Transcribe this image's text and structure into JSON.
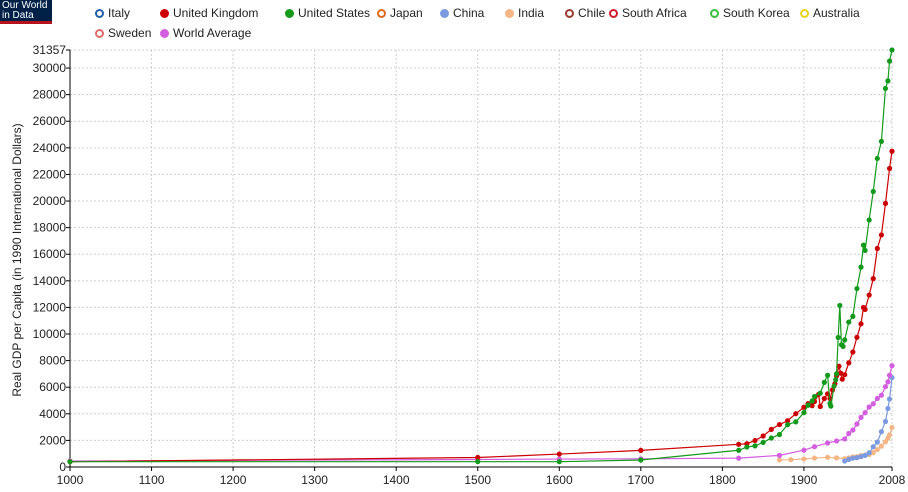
{
  "logo": {
    "line1": "Our World",
    "line2": "in Data"
  },
  "legend": [
    {
      "name": "Italy",
      "color": "#1f5fa8",
      "filled": false
    },
    {
      "name": "United Kingdom",
      "color": "#cc0000",
      "filled": true
    },
    {
      "name": "United States",
      "color": "#139a1b",
      "filled": true
    },
    {
      "name": "Japan",
      "color": "#e06a1a",
      "filled": false
    },
    {
      "name": "China",
      "color": "#7c9ae0",
      "filled": true
    },
    {
      "name": "India",
      "color": "#f5b585",
      "filled": true
    },
    {
      "name": "Chile",
      "color": "#9c3b2e",
      "filled": false
    },
    {
      "name": "South Africa",
      "color": "#d01a2a",
      "filled": false
    },
    {
      "name": "South Korea",
      "color": "#38c038",
      "filled": false
    },
    {
      "name": "Australia",
      "color": "#ead21a",
      "filled": false
    },
    {
      "name": "Sweden",
      "color": "#e06a68",
      "filled": false
    },
    {
      "name": "World Average",
      "color": "#d35ee0",
      "filled": true
    }
  ],
  "chart_data": {
    "type": "line",
    "title": "",
    "xlabel": "",
    "ylabel": "Real GDP per Capita (in 1990 International Dollars)",
    "xlim": [
      1000,
      2008
    ],
    "ylim": [
      0,
      31357
    ],
    "x_ticks": [
      1000,
      1100,
      1200,
      1300,
      1400,
      1500,
      1600,
      1700,
      1800,
      1900,
      2008
    ],
    "y_ticks": [
      0,
      2000,
      4000,
      6000,
      8000,
      10000,
      12000,
      14000,
      16000,
      18000,
      20000,
      22000,
      24000,
      26000,
      28000,
      30000,
      31357
    ],
    "grid": true,
    "legend_position": "top",
    "series": [
      {
        "name": "United States",
        "color": "#139a1b",
        "x": [
          1000,
          1500,
          1600,
          1700,
          1820,
          1830,
          1840,
          1850,
          1860,
          1870,
          1880,
          1890,
          1900,
          1905,
          1910,
          1913,
          1920,
          1925,
          1929,
          1932,
          1933,
          1937,
          1939,
          1940,
          1942,
          1944,
          1946,
          1948,
          1950,
          1955,
          1960,
          1965,
          1970,
          1973,
          1975,
          1980,
          1985,
          1990,
          1995,
          2000,
          2003,
          2005,
          2008
        ],
        "y": [
          400,
          400,
          400,
          527,
          1257,
          1500,
          1588,
          1849,
          2178,
          2445,
          3184,
          3392,
          4091,
          4642,
          4964,
          5301,
          5552,
          6364,
          6899,
          4777,
          4573,
          6087,
          6561,
          7010,
          9741,
          12150,
          9197,
          9065,
          9561,
          10897,
          11328,
          13419,
          15030,
          16689,
          16284,
          18577,
          20717,
          23201,
          24484,
          28467,
          29037,
          30519,
          31357
        ]
      },
      {
        "name": "United Kingdom",
        "color": "#cc0000",
        "x": [
          1000,
          1500,
          1600,
          1700,
          1820,
          1830,
          1840,
          1850,
          1860,
          1870,
          1880,
          1890,
          1900,
          1905,
          1910,
          1913,
          1918,
          1920,
          1925,
          1929,
          1932,
          1935,
          1938,
          1940,
          1943,
          1945,
          1947,
          1950,
          1955,
          1960,
          1965,
          1970,
          1973,
          1975,
          1980,
          1985,
          1990,
          1995,
          2000,
          2005,
          2008
        ],
        "y": [
          400,
          714,
          974,
          1250,
          1706,
          1749,
          1990,
          2330,
          2830,
          3190,
          3477,
          4009,
          4492,
          4763,
          4611,
          4921,
          5459,
          4548,
          5144,
          5503,
          5148,
          5796,
          6266,
          6856,
          7582,
          7056,
          6604,
          6939,
          7828,
          8645,
          9752,
          10767,
          11992,
          11847,
          12931,
          14165,
          16430,
          17451,
          19817,
          22450,
          23742
        ]
      },
      {
        "name": "World Average",
        "color": "#d35ee0",
        "x": [
          1000,
          1500,
          1600,
          1700,
          1820,
          1870,
          1900,
          1913,
          1929,
          1940,
          1950,
          1955,
          1960,
          1965,
          1970,
          1975,
          1980,
          1985,
          1990,
          1995,
          2000,
          2003,
          2005,
          2008
        ],
        "y": [
          450,
          566,
          596,
          616,
          667,
          873,
          1262,
          1526,
          1806,
          1958,
          2111,
          2520,
          2777,
          3232,
          3729,
          4082,
          4512,
          4750,
          5150,
          5400,
          6041,
          6400,
          6900,
          7614
        ]
      },
      {
        "name": "China",
        "color": "#7c9ae0",
        "x": [
          1950,
          1955,
          1960,
          1965,
          1970,
          1975,
          1980,
          1985,
          1990,
          1995,
          2000,
          2003,
          2005,
          2008
        ],
        "y": [
          448,
          575,
          662,
          706,
          778,
          874,
          1061,
          1522,
          1871,
          2653,
          3421,
          4397,
          5108,
          6725
        ]
      },
      {
        "name": "India",
        "color": "#f5b585",
        "x": [
          1870,
          1884,
          1900,
          1913,
          1929,
          1940,
          1950,
          1955,
          1960,
          1965,
          1970,
          1975,
          1980,
          1985,
          1990,
          1995,
          2000,
          2003,
          2005,
          2008
        ],
        "y": [
          533,
          550,
          599,
          673,
          728,
          686,
          619,
          676,
          753,
          771,
          868,
          897,
          938,
          1079,
          1309,
          1568,
          1892,
          2160,
          2419,
          2975
        ]
      }
    ]
  }
}
